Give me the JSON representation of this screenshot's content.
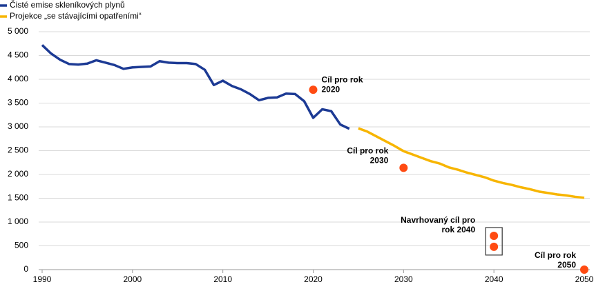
{
  "chart_data": {
    "type": "line",
    "series": [
      {
        "name": "Čisté emise skleníkových plynů",
        "color": "#1c3a94",
        "x": [
          1990,
          1991,
          1992,
          1993,
          1994,
          1995,
          1996,
          1997,
          1998,
          1999,
          2000,
          2001,
          2002,
          2003,
          2004,
          2005,
          2006,
          2007,
          2008,
          2009,
          2010,
          2011,
          2012,
          2013,
          2014,
          2015,
          2016,
          2017,
          2018,
          2019,
          2020,
          2021,
          2022,
          2023,
          2024
        ],
        "values": [
          4720,
          4540,
          4410,
          4320,
          4310,
          4330,
          4400,
          4350,
          4300,
          4220,
          4250,
          4260,
          4270,
          4380,
          4350,
          4340,
          4340,
          4320,
          4200,
          3880,
          3970,
          3860,
          3790,
          3690,
          3560,
          3610,
          3620,
          3700,
          3690,
          3540,
          3190,
          3370,
          3330,
          3050,
          2960
        ]
      },
      {
        "name": "Projekce „se stávajícími opatřeními“",
        "color": "#f7b500",
        "x": [
          2025,
          2026,
          2027,
          2028,
          2029,
          2030,
          2031,
          2032,
          2033,
          2034,
          2035,
          2036,
          2037,
          2038,
          2039,
          2040,
          2041,
          2042,
          2043,
          2044,
          2045,
          2046,
          2047,
          2048,
          2049,
          2050
        ],
        "values": [
          2970,
          2900,
          2800,
          2700,
          2600,
          2490,
          2420,
          2350,
          2280,
          2230,
          2150,
          2100,
          2040,
          1990,
          1940,
          1870,
          1820,
          1780,
          1730,
          1690,
          1640,
          1610,
          1580,
          1560,
          1530,
          1510
        ]
      }
    ],
    "targets": {
      "color": "#ff4b12",
      "items": [
        {
          "label": [
            "Cíl pro rok",
            "2020"
          ],
          "x": [
            2020
          ],
          "values": [
            3780
          ]
        },
        {
          "label": [
            "Cíl pro rok",
            "2030"
          ],
          "x": [
            2030
          ],
          "values": [
            2140
          ]
        },
        {
          "label": [
            "Navrhovaný cíl pro",
            "rok 2040"
          ],
          "x": [
            2040,
            2040
          ],
          "values": [
            710,
            480
          ]
        },
        {
          "label": [
            "Cíl pro rok",
            "2050"
          ],
          "x": [
            2050
          ],
          "values": [
            0
          ]
        }
      ]
    },
    "xlim": [
      1990,
      2050
    ],
    "xticks": [
      1990,
      2000,
      2010,
      2020,
      2030,
      2040,
      2050
    ],
    "ylim": [
      0,
      5000
    ],
    "yticks": [
      0,
      500,
      {
        "value": 1000,
        "label": "1 000"
      },
      {
        "value": 1500,
        "label": "1 500"
      },
      {
        "value": 2000,
        "label": "2 000"
      },
      {
        "value": 2500,
        "label": "2 500"
      },
      {
        "value": 3000,
        "label": "3 000"
      },
      {
        "value": 3500,
        "label": "3 500"
      },
      {
        "value": 4000,
        "label": "4 000"
      },
      {
        "value": 4500,
        "label": "4 500"
      },
      {
        "value": 5000,
        "label": "5 000"
      }
    ],
    "grid": true
  }
}
